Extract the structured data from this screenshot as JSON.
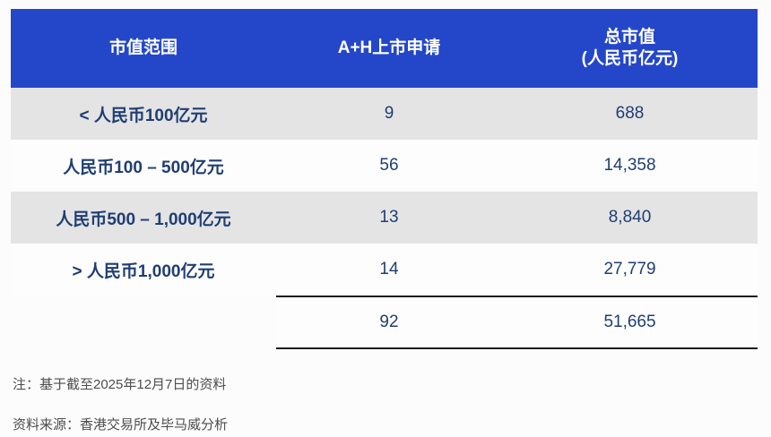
{
  "table": {
    "headers": {
      "col1": "市值范围",
      "col2": "A+H上市申请",
      "col3_line1": "总市值",
      "col3_line2": "(人民币亿元)"
    },
    "rows": [
      {
        "range": "< 人民币100亿元",
        "applications": "9",
        "market_cap": "688"
      },
      {
        "range": "人民币100 – 500亿元",
        "applications": "56",
        "market_cap": "14,358"
      },
      {
        "range": "人民币500 – 1,000亿元",
        "applications": "13",
        "market_cap": "8,840"
      },
      {
        "range": "> 人民币1,000亿元",
        "applications": "14",
        "market_cap": "27,779"
      }
    ],
    "total": {
      "applications": "92",
      "market_cap": "51,665"
    }
  },
  "notes": [
    "注：基于截至2025年12月7日的资料",
    "资料来源：香港交易所及毕马威分析"
  ],
  "colors": {
    "header_blue": "#2447c9",
    "row_alt_gray": "#e4e4e4",
    "text_navy": "#1f3e73",
    "rule_black": "#1c1c1c",
    "note_gray": "#4d4d4d"
  },
  "chart_data": {
    "type": "table",
    "title": "",
    "columns": [
      "市值范围",
      "A+H上市申请",
      "总市值 (人民币亿元)"
    ],
    "rows": [
      [
        "< 人民币100亿元",
        9,
        688
      ],
      [
        "人民币100 – 500亿元",
        56,
        14358
      ],
      [
        "人民币500 – 1,000亿元",
        13,
        8840
      ],
      [
        "> 人民币1,000亿元",
        14,
        27779
      ]
    ],
    "total": {
      "applications": 92,
      "market_cap": 51665
    },
    "notes": [
      "注：基于截至2025年12月7日的资料",
      "资料来源：香港交易所及毕马威分析"
    ],
    "layout_hints": {
      "header_background": "#2447c9",
      "alternating_rows": true,
      "total_row_double_rule": true
    }
  }
}
